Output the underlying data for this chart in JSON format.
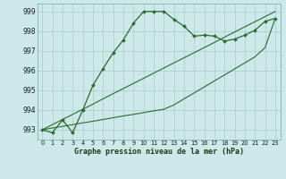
{
  "x": [
    0,
    1,
    2,
    3,
    4,
    5,
    6,
    7,
    8,
    9,
    10,
    11,
    12,
    13,
    14,
    15,
    16,
    17,
    18,
    19,
    20,
    21,
    22,
    23
  ],
  "line_main": [
    993.0,
    992.85,
    993.5,
    992.85,
    994.0,
    995.25,
    996.1,
    996.9,
    997.55,
    998.4,
    999.0,
    999.0,
    999.0,
    998.6,
    998.25,
    997.75,
    997.8,
    997.75,
    997.5,
    997.6,
    997.8,
    998.05,
    998.5,
    998.65
  ],
  "line_diag1": [
    993.0,
    993.26,
    993.52,
    993.78,
    994.04,
    994.3,
    994.57,
    994.83,
    995.09,
    995.35,
    995.61,
    995.87,
    996.13,
    996.39,
    996.65,
    996.91,
    997.17,
    997.43,
    997.7,
    997.96,
    998.22,
    998.48,
    998.74,
    999.0
  ],
  "line_diag2": [
    993.0,
    993.09,
    993.17,
    993.26,
    993.35,
    993.43,
    993.52,
    993.61,
    993.7,
    993.78,
    993.87,
    993.96,
    994.04,
    994.26,
    994.57,
    994.87,
    995.17,
    995.48,
    995.78,
    996.09,
    996.39,
    996.7,
    997.17,
    998.65
  ],
  "line_color": "#2d6a2d",
  "bg_color": "#cce8e8",
  "grid_color": "#aacccc",
  "xlabel": "Graphe pression niveau de la mer (hPa)",
  "ylim": [
    992.5,
    999.4
  ],
  "xlim": [
    -0.5,
    23.5
  ],
  "yticks": [
    993,
    994,
    995,
    996,
    997,
    998,
    999
  ],
  "xticks": [
    0,
    1,
    2,
    3,
    4,
    5,
    6,
    7,
    8,
    9,
    10,
    11,
    12,
    13,
    14,
    15,
    16,
    17,
    18,
    19,
    20,
    21,
    22,
    23
  ]
}
